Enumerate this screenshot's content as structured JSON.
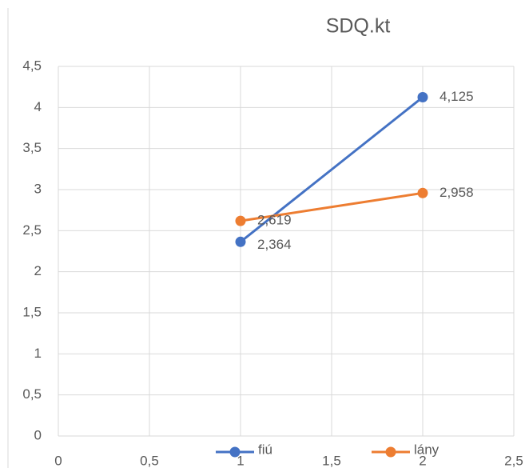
{
  "chart_data": {
    "type": "scatter-line",
    "title": "SDQ.kt",
    "x": [
      1,
      2
    ],
    "series": [
      {
        "name": "fiú",
        "color": "#4472c4",
        "values": [
          2.364,
          4.125
        ],
        "value_labels": [
          "2,364",
          "4,125"
        ]
      },
      {
        "name": "lány",
        "color": "#ed7d31",
        "values": [
          2.619,
          2.958
        ],
        "value_labels": [
          "2,619",
          "2,958"
        ]
      }
    ],
    "xlim": [
      0,
      2.5
    ],
    "xticks": [
      0,
      {
        "value": 0.5,
        "label": "0,5"
      },
      1,
      {
        "value": 1.5,
        "label": "1,5"
      },
      2,
      {
        "value": 2.5,
        "label": "2,5"
      }
    ],
    "ylim": [
      0,
      4.5
    ],
    "yticks": [
      0,
      {
        "value": 0.5,
        "label": "0,5"
      },
      1,
      {
        "value": 1.5,
        "label": "1,5"
      },
      2,
      {
        "value": 2.5,
        "label": "2,5"
      },
      3,
      {
        "value": 3.5,
        "label": "3,5"
      },
      4,
      {
        "value": 4.5,
        "label": "4,5"
      }
    ],
    "grid": true,
    "legend": "bottom"
  }
}
